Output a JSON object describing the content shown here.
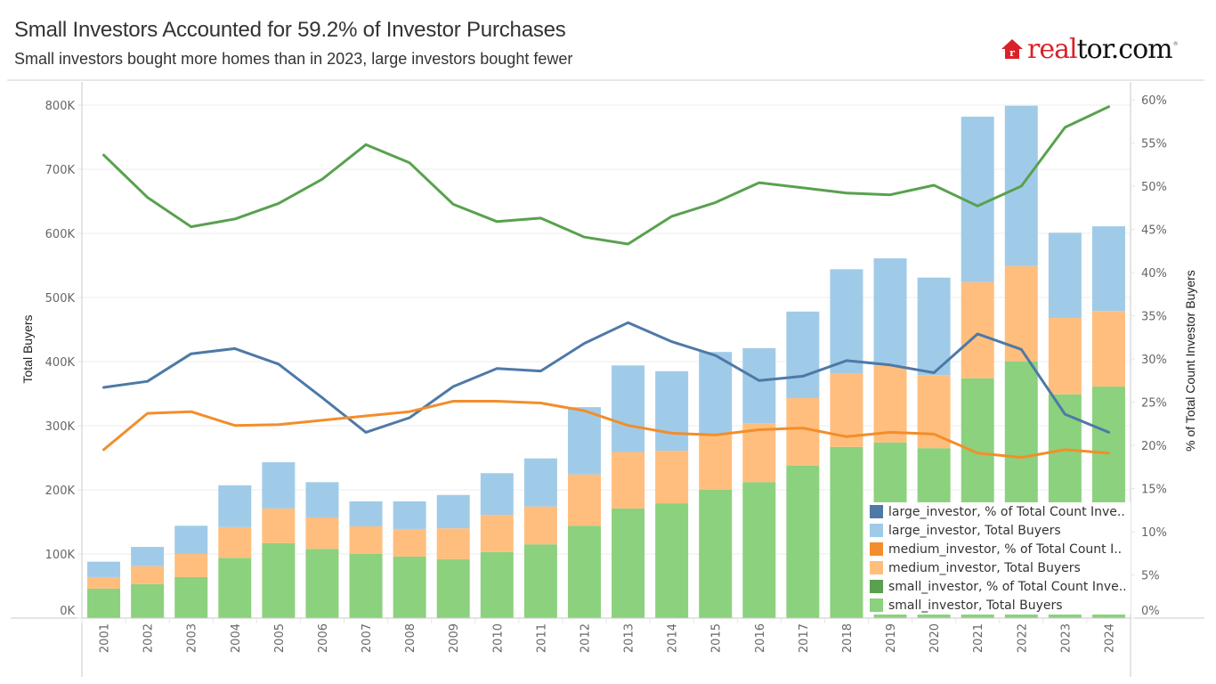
{
  "header": {
    "title": "Small Investors Accounted for 59.2% of Investor Purchases",
    "subtitle": "Small investors bought more homes than in 2023, large investors bought fewer",
    "logo": {
      "part1": "real",
      "part2": "tor.com",
      "tm": "®",
      "icon": "house-icon"
    }
  },
  "chart_data": {
    "type": "bar",
    "subtype": "stacked bar + line (dual axis)",
    "title": "Small Investors Accounted for 59.2% of Investor Purchases",
    "subtitle": "Small investors bought more homes than in 2023, large investors bought fewer",
    "xlabel": "",
    "ylabel": "Total Buyers",
    "y2label": "% of Total Count Investor Buyers",
    "ylim": [
      0,
      800000
    ],
    "y2lim": [
      0,
      60
    ],
    "yticks": [
      "0K",
      "100K",
      "200K",
      "300K",
      "400K",
      "500K",
      "600K",
      "700K",
      "800K"
    ],
    "y2ticks": [
      "0%",
      "5%",
      "10%",
      "15%",
      "20%",
      "25%",
      "30%",
      "35%",
      "40%",
      "45%",
      "50%",
      "55%",
      "60%"
    ],
    "grid": true,
    "legend_position": "bottom-right",
    "categories": [
      "2001",
      "2002",
      "2003",
      "2004",
      "2005",
      "2006",
      "2007",
      "2008",
      "2009",
      "2010",
      "2011",
      "2012",
      "2013",
      "2014",
      "2015",
      "2016",
      "2017",
      "2018",
      "2019",
      "2020",
      "2021",
      "2022",
      "2023",
      "2024"
    ],
    "bar_series": [
      {
        "name": "small_investor, Total Buyers",
        "color": "#8cd17d",
        "values": [
          46000,
          53000,
          64000,
          94000,
          117000,
          108000,
          100000,
          96000,
          92000,
          103000,
          115000,
          144000,
          171000,
          179000,
          200000,
          212000,
          238000,
          267000,
          274000,
          265000,
          374000,
          400000,
          349000,
          361000
        ]
      },
      {
        "name": "medium_investor, Total Buyers",
        "color": "#ffbe7d",
        "values": [
          18000,
          28000,
          36000,
          48000,
          54000,
          49000,
          43000,
          43000,
          48000,
          58000,
          59000,
          80000,
          88000,
          82000,
          86000,
          92000,
          105000,
          115000,
          120000,
          114000,
          150000,
          149000,
          119000,
          118000
        ]
      },
      {
        "name": "large_investor, Total Buyers",
        "color": "#a0cbe8",
        "values": [
          24000,
          30000,
          44000,
          65000,
          72000,
          55000,
          39000,
          43000,
          52000,
          65000,
          75000,
          105000,
          135000,
          124000,
          129000,
          117000,
          135000,
          162000,
          167000,
          152000,
          258000,
          250000,
          133000,
          132000
        ]
      }
    ],
    "line_series": [
      {
        "name": "large_investor, % of Total Count Investor Buyers",
        "color": "#4e79a7",
        "values": [
          26.7,
          27.4,
          30.6,
          31.2,
          29.4,
          25.5,
          21.5,
          23.2,
          26.8,
          28.9,
          28.6,
          31.8,
          34.2,
          32.0,
          30.4,
          27.5,
          28.0,
          29.8,
          29.3,
          28.4,
          32.9,
          31.1,
          23.6,
          21.5
        ]
      },
      {
        "name": "medium_investor, % of Total Count Investor Buyers",
        "color": "#f28e2b",
        "values": [
          19.5,
          23.7,
          23.9,
          22.3,
          22.4,
          22.9,
          23.4,
          23.9,
          25.1,
          25.1,
          24.9,
          24.0,
          22.3,
          21.4,
          21.2,
          21.8,
          22.0,
          21.0,
          21.5,
          21.3,
          19.1,
          18.6,
          19.5,
          19.1
        ]
      },
      {
        "name": "small_investor, % of Total Count Investor Buyers",
        "color": "#59a14f",
        "values": [
          53.6,
          48.7,
          45.3,
          46.2,
          48.0,
          50.8,
          54.8,
          52.7,
          47.9,
          45.9,
          46.3,
          44.1,
          43.3,
          46.5,
          48.1,
          50.4,
          49.8,
          49.2,
          49.0,
          50.1,
          47.7,
          50.0,
          56.8,
          59.2
        ]
      }
    ]
  },
  "legend": {
    "items": [
      {
        "label": "large_investor, % of Total Count Inve..",
        "color": "#4e79a7"
      },
      {
        "label": "large_investor, Total Buyers",
        "color": "#a0cbe8"
      },
      {
        "label": "medium_investor, % of Total Count I..",
        "color": "#f28e2b"
      },
      {
        "label": "medium_investor, Total Buyers",
        "color": "#ffbe7d"
      },
      {
        "label": "small_investor, % of Total Count Inve..",
        "color": "#59a14f"
      },
      {
        "label": "small_investor, Total Buyers",
        "color": "#8cd17d"
      }
    ]
  }
}
